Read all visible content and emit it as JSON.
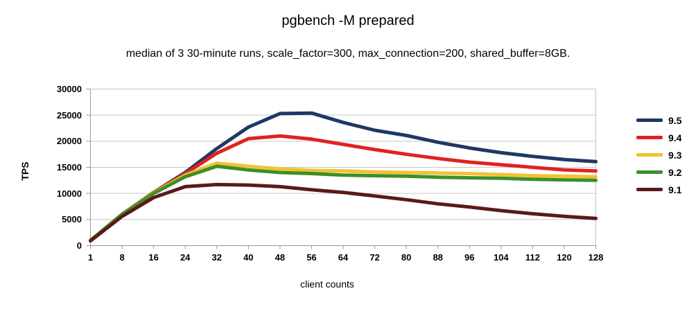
{
  "chart_data": {
    "type": "line",
    "title": "pgbench -M prepared",
    "subtitle": "median of 3 30-minute runs, scale_factor=300, max_connection=200, shared_buffer=8GB.",
    "xlabel": "client counts",
    "ylabel": "TPS",
    "grid": true,
    "legend_position": "right",
    "x": [
      1,
      8,
      16,
      24,
      32,
      40,
      48,
      56,
      64,
      72,
      80,
      88,
      96,
      104,
      112,
      120,
      128
    ],
    "y_axis": {
      "min": 0,
      "max": 30000,
      "tick_step": 5000,
      "tick_labels": [
        "0",
        "5000",
        "10000",
        "15000",
        "20000",
        "25000",
        "30000"
      ]
    },
    "series": [
      {
        "name": "9.5",
        "color": "#1F3864",
        "values": [
          1000,
          6000,
          10200,
          14000,
          18600,
          22700,
          25300,
          25400,
          23600,
          22100,
          21100,
          19800,
          18700,
          17800,
          17100,
          16500,
          16100
        ]
      },
      {
        "name": "9.4",
        "color": "#E02222",
        "values": [
          1000,
          6000,
          10200,
          13800,
          17700,
          20500,
          21000,
          20400,
          19400,
          18400,
          17500,
          16700,
          16000,
          15500,
          15000,
          14500,
          14300
        ]
      },
      {
        "name": "9.3",
        "color": "#F2C230",
        "values": [
          1000,
          6000,
          10100,
          13500,
          15800,
          15200,
          14700,
          14400,
          14300,
          14100,
          14000,
          13900,
          13800,
          13600,
          13400,
          13300,
          13200
        ]
      },
      {
        "name": "9.2",
        "color": "#3E8E28",
        "values": [
          1000,
          6000,
          10000,
          13200,
          15200,
          14500,
          14000,
          13800,
          13500,
          13400,
          13300,
          13100,
          13000,
          12900,
          12700,
          12600,
          12500
        ]
      },
      {
        "name": "9.1",
        "color": "#5A1A1A",
        "values": [
          900,
          5600,
          9200,
          11300,
          11700,
          11600,
          11300,
          10700,
          10200,
          9500,
          8800,
          8000,
          7400,
          6700,
          6100,
          5600,
          5200
        ]
      }
    ]
  },
  "style": {
    "gridline_color": "#c6c6c6",
    "axis_color": "#999999",
    "border_color": "#c0c0c0"
  }
}
